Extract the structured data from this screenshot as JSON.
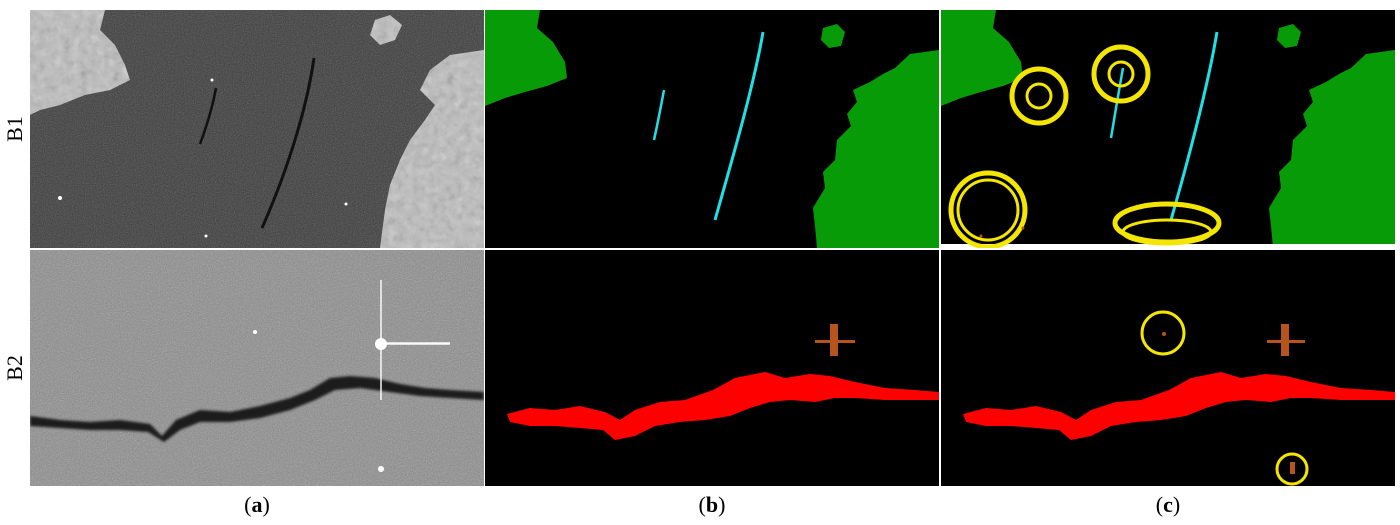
{
  "row_labels": {
    "b1": "B1",
    "b2": "B2"
  },
  "captions": {
    "a": {
      "open": "(",
      "letter": "a",
      "close": ")"
    },
    "b": {
      "open": "(",
      "letter": "b",
      "close": ")"
    },
    "c": {
      "open": "(",
      "letter": "c",
      "close": ")"
    }
  },
  "colors": {
    "land": "#089b08",
    "oil_thin": "#1fe0e6",
    "oil_thick": "#ff0000",
    "ship": "#b5551d",
    "highlight": "#f5e600",
    "sea": "#000000"
  }
}
